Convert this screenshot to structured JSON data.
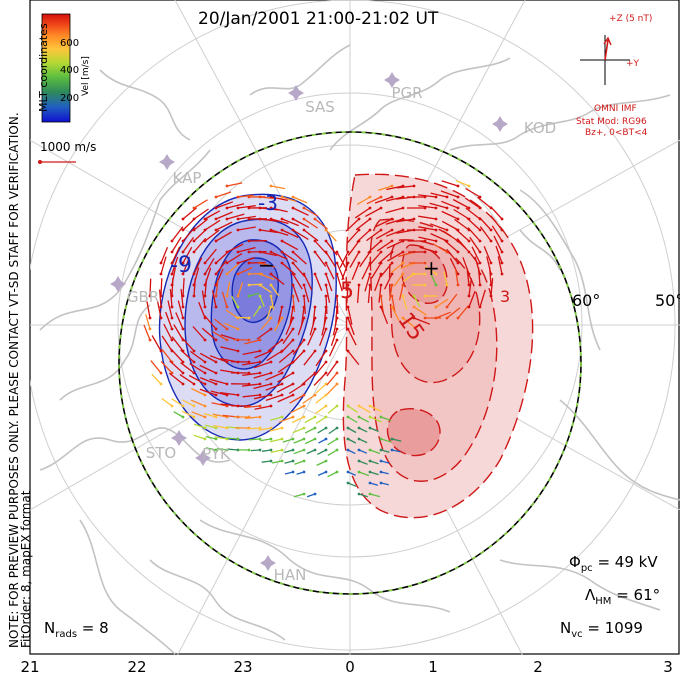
{
  "title": "20/Jan/2001 21:00-21:02 UT",
  "side_note_1": "NOTE: FOR PREVIEW PURPOSES ONLY. PLEASE CONTACT VT-SD STAFF FOR VERIFICATION.",
  "side_note_2": "FitOrder: 8, mapEX format",
  "coords_label": "MLT coordinates",
  "colorbar": {
    "label": "Vel [m/s]",
    "ticks": [
      "600",
      "400",
      "200"
    ],
    "colors": [
      "#1010d0",
      "#2060c0",
      "#2f8a5a",
      "#5fbf3f",
      "#b6d934",
      "#ffc43a",
      "#ff8a26",
      "#f04818",
      "#d40f0f"
    ]
  },
  "scale_vector": "1000 m/s",
  "imf": {
    "z_label": "+Z (5 nT)",
    "y_label": "+Y",
    "source": "OMNI IMF",
    "stat_mod": "Stat Mod: RG96",
    "bz_condition": "Bz+, 0<BT<4"
  },
  "stations": [
    "SAS",
    "PGR",
    "KOD",
    "KAP",
    "GBR",
    "STO",
    "PYK",
    "HAN"
  ],
  "lat_labels": [
    "60°",
    "50°"
  ],
  "contour_labels": [
    "-9",
    "-3",
    "-5",
    "5",
    "15",
    "3"
  ],
  "stats": {
    "phi_label": "Φ",
    "phi_sub": "pc",
    "phi_value": " = 49 kV",
    "lambda_label": "Λ",
    "lambda_sub": "HM",
    "lambda_value": " = 61°",
    "nvc_label": "N",
    "nvc_sub": "vc",
    "nvc_value": " = 1099",
    "nrads_label": "N",
    "nrads_sub": "rads",
    "nrads_value": " = 8"
  },
  "mlt_ticks": [
    "21",
    "22",
    "23",
    "0",
    "1",
    "2",
    "3"
  ],
  "polar_cap_min_marker": "−",
  "polar_cap_max_marker": "+"
}
